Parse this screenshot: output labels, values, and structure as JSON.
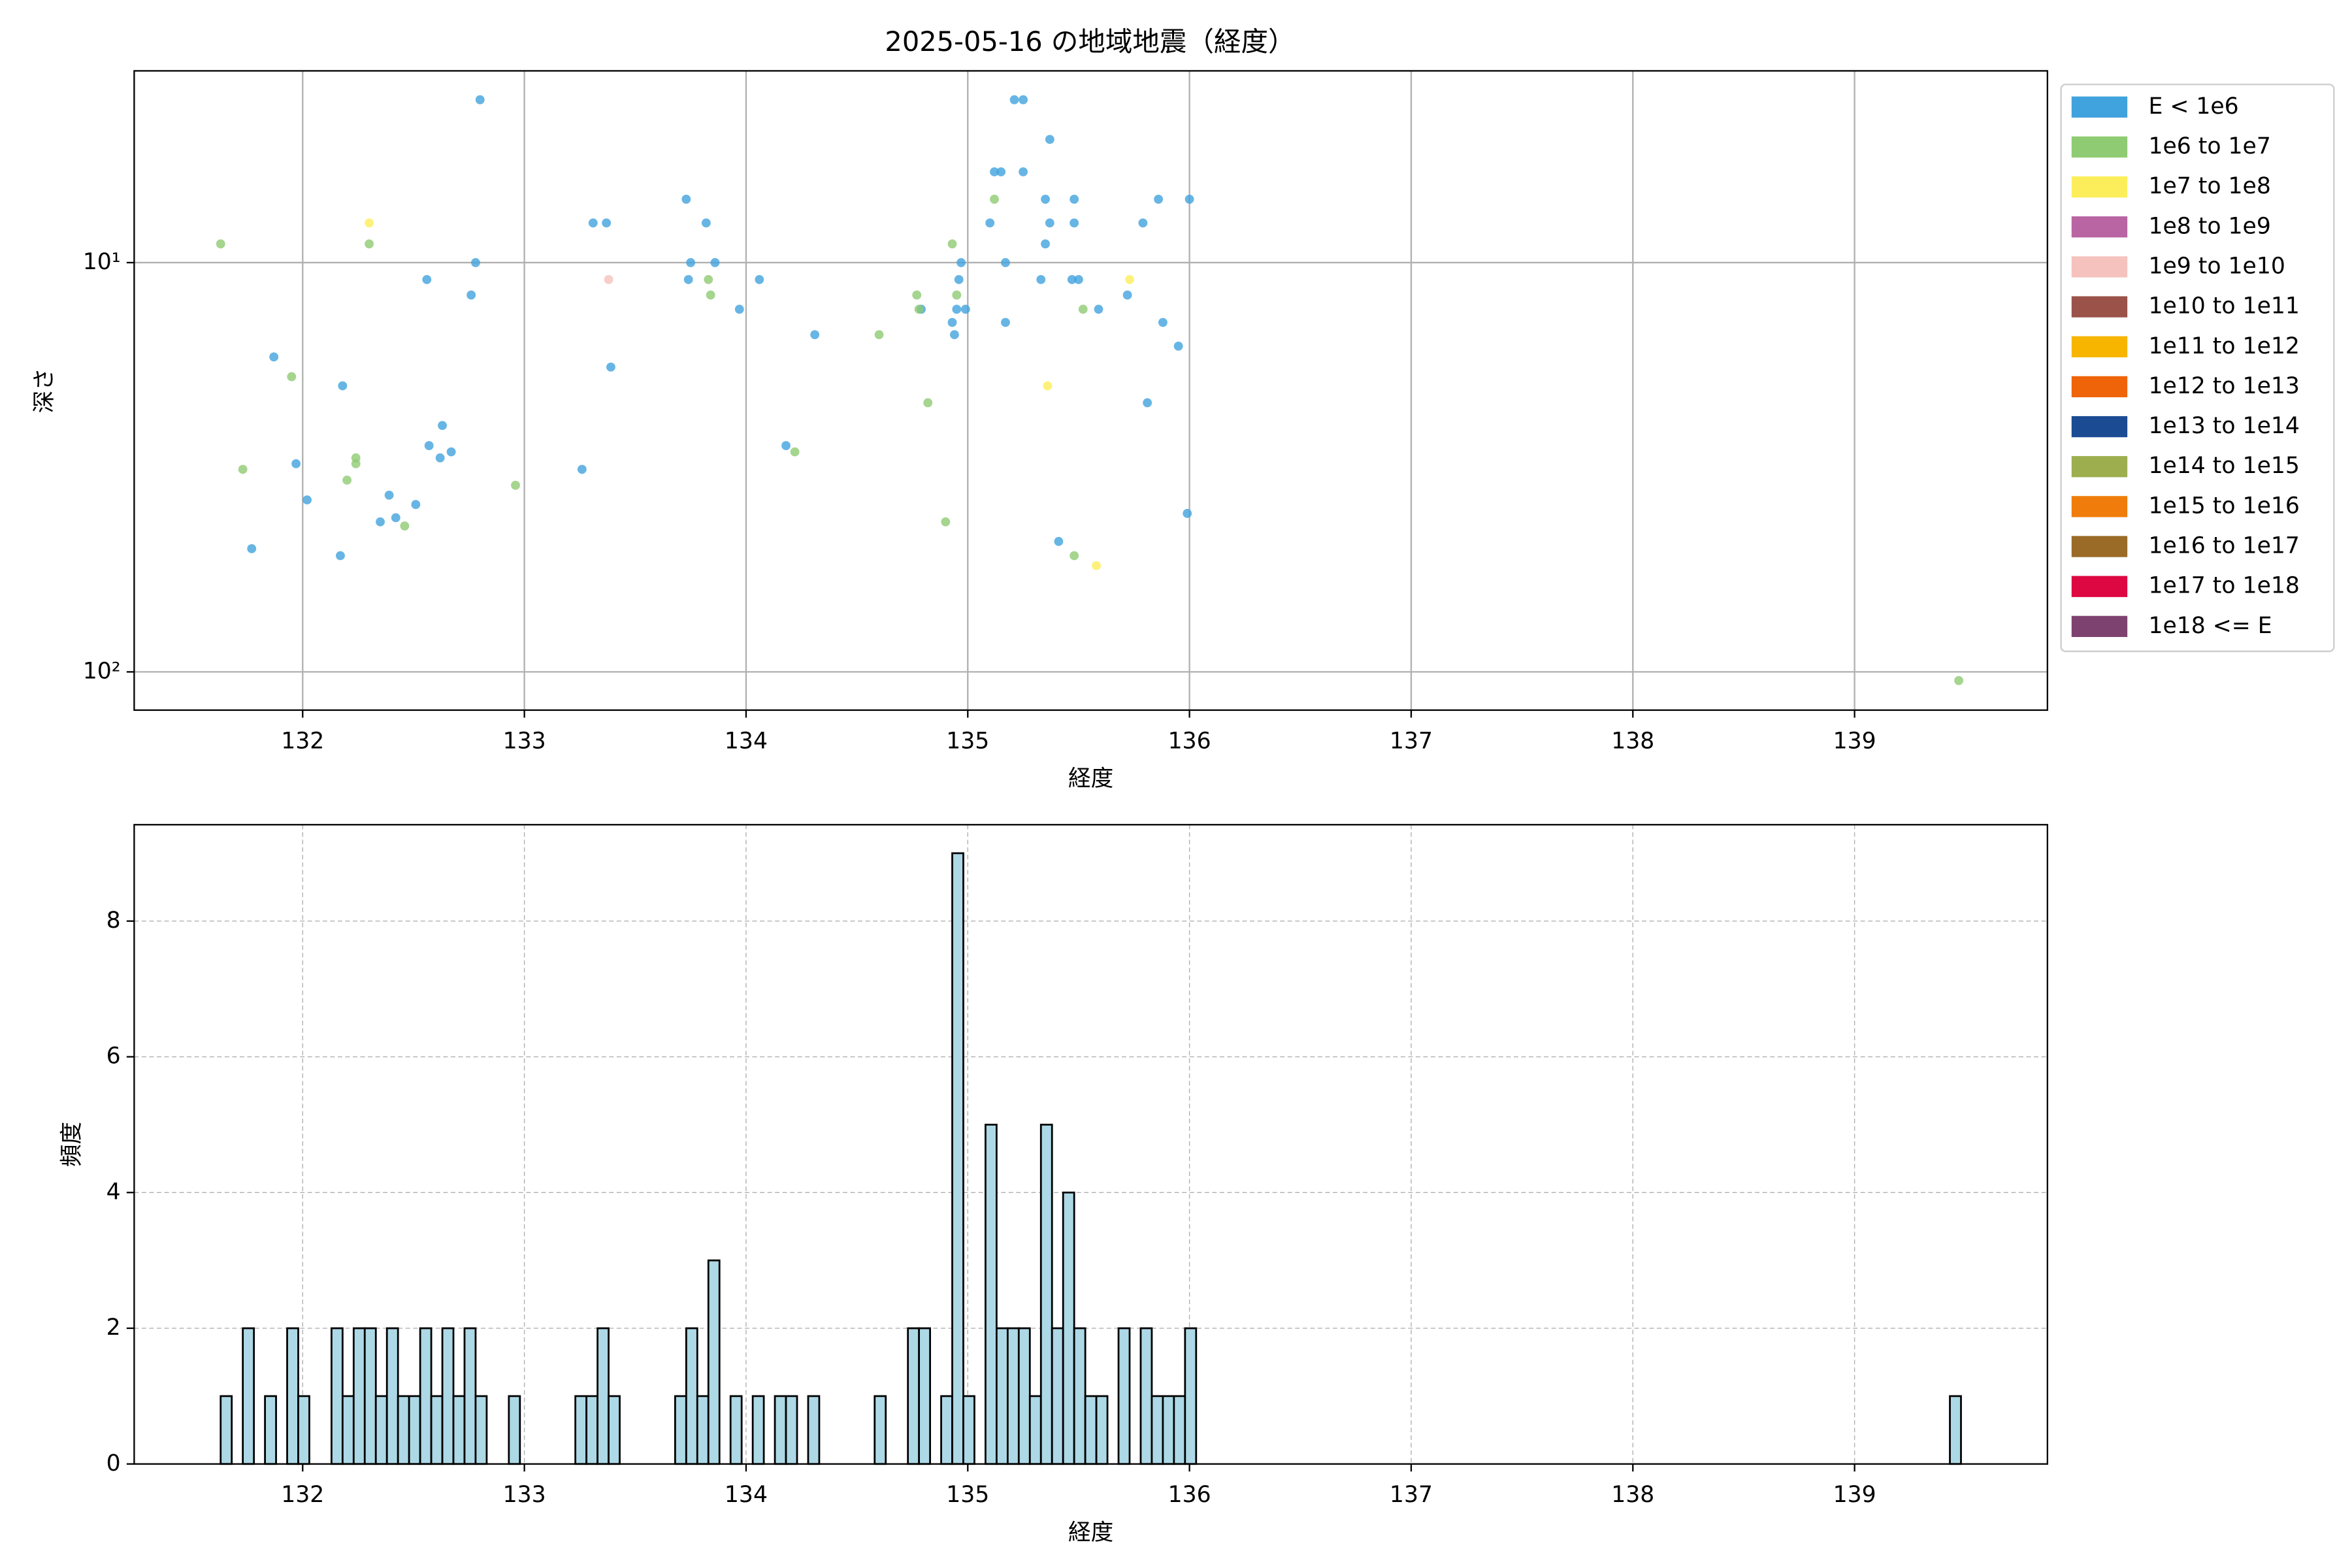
{
  "chart_data": [
    {
      "type": "scatter",
      "title": "2025-05-16 の地域地震（経度）",
      "xlabel": "経度",
      "ylabel": "深さ",
      "xlim": [
        131.24,
        139.87
      ],
      "ylim": [
        124,
        3.4
      ],
      "yscale": "log",
      "xticks": [
        132,
        133,
        134,
        135,
        136,
        137,
        138,
        139
      ],
      "yticks": [
        {
          "value": 10,
          "label": "10¹"
        },
        {
          "value": 100,
          "label": "10²"
        }
      ],
      "grid": true,
      "legend": "right",
      "series": [
        {
          "name": "E < 1e6",
          "color": "#41a3dd",
          "x": [
            131.87,
            131.77,
            131.97,
            132.02,
            132.18,
            132.17,
            132.35,
            132.39,
            132.42,
            132.51,
            132.56,
            132.57,
            132.62,
            132.63,
            132.67,
            132.76,
            132.78,
            132.8,
            133.26,
            133.31,
            133.37,
            133.39,
            133.73,
            133.75,
            133.74,
            133.82,
            133.86,
            133.97,
            134.06,
            134.18,
            134.31,
            134.79,
            134.96,
            134.94,
            134.93,
            134.95,
            134.97,
            134.99,
            135.1,
            135.12,
            135.15,
            135.17,
            135.17,
            135.21,
            135.25,
            135.25,
            135.33,
            135.35,
            135.35,
            135.37,
            135.37,
            135.41,
            135.47,
            135.48,
            135.48,
            135.5,
            135.59,
            135.72,
            135.79,
            135.81,
            135.86,
            135.88,
            135.95,
            136.0,
            135.99
          ],
          "y": [
            17,
            50,
            31,
            38,
            20,
            52,
            43,
            37,
            42,
            39,
            11,
            28,
            30,
            25,
            29,
            12,
            10,
            4,
            32,
            8,
            8,
            18,
            7,
            10,
            11,
            8,
            10,
            13,
            11,
            28,
            15,
            13,
            11,
            15,
            14,
            13,
            10,
            13,
            8,
            6,
            6,
            10,
            14,
            4,
            4,
            6,
            11,
            7,
            9,
            8,
            5,
            48,
            11,
            7,
            8,
            11,
            13,
            12,
            8,
            22,
            7,
            14,
            16,
            7,
            41
          ]
        },
        {
          "name": "1e6 to 1e7",
          "color": "#8fcb72",
          "x": [
            131.63,
            131.73,
            131.95,
            132.2,
            132.24,
            132.24,
            132.3,
            132.46,
            132.96,
            133.83,
            133.84,
            134.22,
            134.6,
            134.77,
            134.78,
            134.82,
            134.9,
            134.93,
            134.95,
            135.12,
            135.48,
            135.52,
            139.47
          ],
          "y": [
            9,
            32,
            19,
            34,
            30,
            31,
            9,
            44,
            35,
            11,
            12,
            29,
            15,
            12,
            13,
            22,
            43,
            9,
            12,
            7,
            52,
            13,
            105
          ]
        },
        {
          "name": "1e7 to 1e8",
          "color": "#fcee5a",
          "x": [
            132.3,
            135.36,
            135.58,
            135.73
          ],
          "y": [
            8,
            20,
            55,
            11
          ]
        },
        {
          "name": "1e8 to 1e9",
          "color": "#b965a3",
          "x": [],
          "y": []
        },
        {
          "name": "1e9 to 1e10",
          "color": "#f5c2bd",
          "x": [
            133.38
          ],
          "y": [
            11
          ]
        },
        {
          "name": "1e10 to 1e11",
          "color": "#9a5249",
          "x": [],
          "y": []
        },
        {
          "name": "1e11 to 1e12",
          "color": "#f7b500",
          "x": [],
          "y": []
        },
        {
          "name": "1e12 to 1e13",
          "color": "#ef6409",
          "x": [],
          "y": []
        },
        {
          "name": "1e13 to 1e14",
          "color": "#1b4b93",
          "x": [],
          "y": []
        },
        {
          "name": "1e14 to 1e15",
          "color": "#9cae4e",
          "x": [],
          "y": []
        },
        {
          "name": "1e15 to 1e16",
          "color": "#f07d0b",
          "x": [],
          "y": []
        },
        {
          "name": "1e16 to 1e17",
          "color": "#9a6b27",
          "x": [],
          "y": []
        },
        {
          "name": "1e17 to 1e18",
          "color": "#dd0741",
          "x": [],
          "y": []
        },
        {
          "name": "1e18 <= E",
          "color": "#7d4270",
          "x": [],
          "y": []
        }
      ]
    },
    {
      "type": "histogram",
      "xlabel": "経度",
      "ylabel": "頻度",
      "xlim": [
        131.24,
        139.87
      ],
      "ylim": [
        0,
        9.42
      ],
      "xticks": [
        132,
        133,
        134,
        135,
        136,
        137,
        138,
        139
      ],
      "yticks": [
        0,
        2,
        4,
        6,
        8
      ],
      "grid": true,
      "grid_style": "dashed",
      "color": "#add8e6",
      "edgecolor": "#000000",
      "bins": [
        131.63,
        131.68,
        131.73,
        131.78,
        131.83,
        131.88,
        131.93,
        131.98,
        132.03,
        132.08,
        132.13,
        132.18,
        132.23,
        132.28,
        132.33,
        132.38,
        132.43,
        132.48,
        132.53,
        132.58,
        132.63,
        132.68,
        132.73,
        132.78,
        132.83,
        132.88,
        132.93,
        132.98,
        133.03,
        133.08,
        133.13,
        133.18,
        133.23,
        133.28,
        133.33,
        133.38,
        133.43,
        133.48,
        133.53,
        133.58,
        133.63,
        133.68,
        133.73,
        133.78,
        133.83,
        133.88,
        133.93,
        133.98,
        134.03,
        134.08,
        134.13,
        134.18,
        134.23,
        134.28,
        134.33,
        134.38,
        134.43,
        134.48,
        134.53,
        134.58,
        134.63,
        134.68,
        134.73,
        134.78,
        134.83,
        134.88,
        134.93,
        134.98,
        135.03,
        135.08,
        135.13,
        135.18,
        135.23,
        135.28,
        135.33,
        135.38,
        135.43,
        135.48,
        135.53,
        135.58,
        135.63,
        135.68,
        135.73,
        135.78,
        135.83,
        135.88,
        135.93,
        135.98,
        136.03,
        139.43,
        139.48
      ],
      "values": [
        1,
        0,
        2,
        0,
        1,
        0,
        2,
        1,
        0,
        0,
        2,
        1,
        2,
        2,
        1,
        2,
        1,
        1,
        2,
        1,
        2,
        1,
        2,
        1,
        0,
        0,
        1,
        0,
        0,
        0,
        0,
        0,
        1,
        1,
        2,
        1,
        0,
        0,
        0,
        0,
        0,
        1,
        2,
        1,
        3,
        0,
        1,
        0,
        1,
        0,
        1,
        1,
        0,
        1,
        0,
        0,
        0,
        0,
        0,
        1,
        0,
        0,
        2,
        2,
        0,
        1,
        9,
        1,
        0,
        5,
        2,
        2,
        2,
        1,
        5,
        2,
        4,
        2,
        1,
        1,
        0,
        2,
        0,
        2,
        1,
        1,
        1,
        2,
        0,
        1
      ]
    }
  ]
}
